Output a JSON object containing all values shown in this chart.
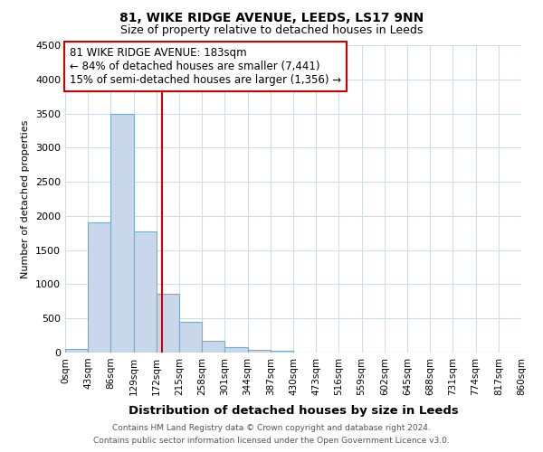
{
  "title": "81, WIKE RIDGE AVENUE, LEEDS, LS17 9NN",
  "subtitle": "Size of property relative to detached houses in Leeds",
  "xlabel": "Distribution of detached houses by size in Leeds",
  "ylabel": "Number of detached properties",
  "bar_values": [
    50,
    1900,
    3500,
    1780,
    860,
    450,
    175,
    80,
    40,
    20,
    0,
    0,
    0,
    0,
    0,
    0,
    0,
    0,
    0,
    0
  ],
  "bar_left_edges": [
    0,
    43,
    86,
    129,
    172,
    215,
    258,
    301,
    344,
    387,
    430,
    473,
    516,
    559,
    602,
    645,
    688,
    731,
    774,
    817
  ],
  "bin_width": 43,
  "tick_labels": [
    "0sqm",
    "43sqm",
    "86sqm",
    "129sqm",
    "172sqm",
    "215sqm",
    "258sqm",
    "301sqm",
    "344sqm",
    "387sqm",
    "430sqm",
    "473sqm",
    "516sqm",
    "559sqm",
    "602sqm",
    "645sqm",
    "688sqm",
    "731sqm",
    "774sqm",
    "817sqm",
    "860sqm"
  ],
  "bar_color": "#c8d8ea",
  "bar_edge_color": "#7aaac8",
  "ylim": [
    0,
    4500
  ],
  "yticks": [
    0,
    500,
    1000,
    1500,
    2000,
    2500,
    3000,
    3500,
    4000,
    4500
  ],
  "property_line_x": 183,
  "property_line_color": "#cc0000",
  "annotation_title": "81 WIKE RIDGE AVENUE: 183sqm",
  "annotation_line1": "← 84% of detached houses are smaller (7,441)",
  "annotation_line2": "15% of semi-detached houses are larger (1,356) →",
  "annotation_box_color": "#ffffff",
  "annotation_box_edge_color": "#cc0000",
  "footer1": "Contains HM Land Registry data © Crown copyright and database right 2024.",
  "footer2": "Contains public sector information licensed under the Open Government Licence v3.0.",
  "background_color": "#ffffff",
  "grid_color": "#d0dce8"
}
